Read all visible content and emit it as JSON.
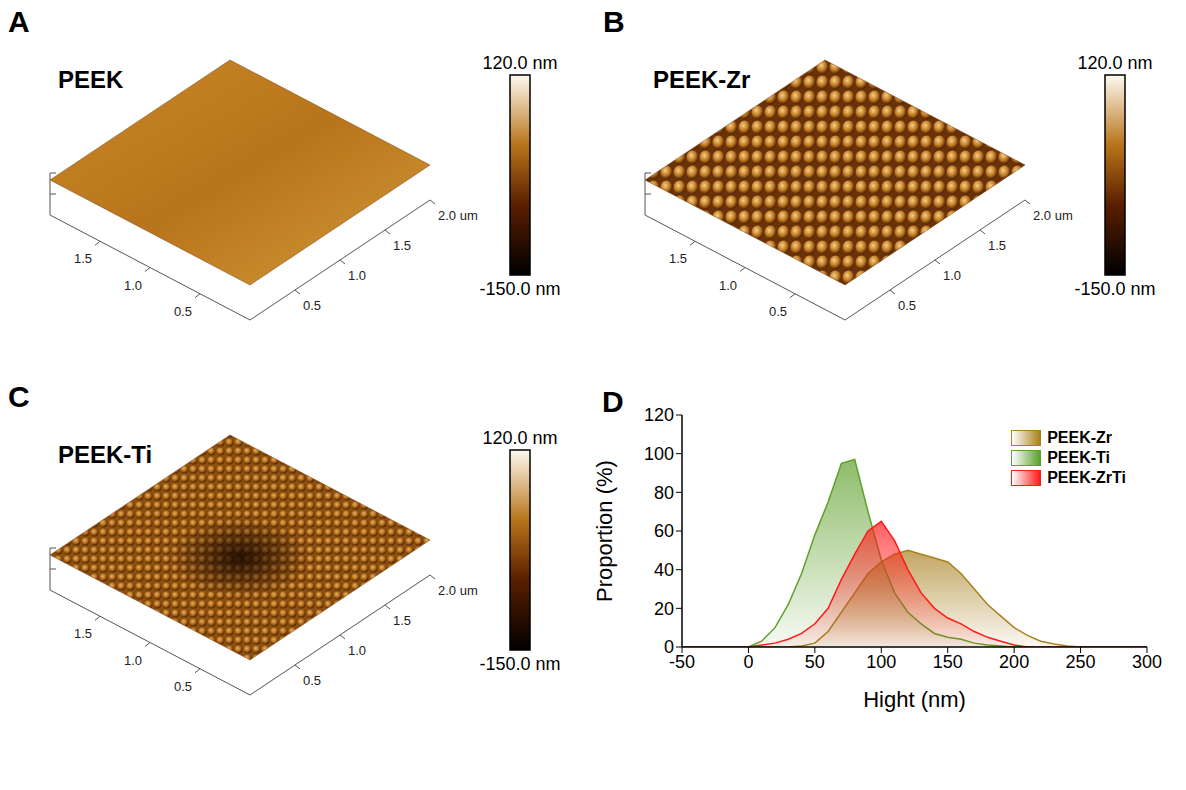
{
  "chart_data": [
    {
      "type": "surface",
      "panel": "A",
      "title": "PEEK",
      "xlim": [
        0,
        2
      ],
      "ylim": [
        0,
        2
      ],
      "xticks": [
        {
          "value": 0.5,
          "label": "0.5"
        },
        {
          "value": 1.0,
          "label": "1.0"
        },
        {
          "value": 1.5,
          "label": "1.5"
        },
        {
          "value": 2.0,
          "label": "2.0 um"
        }
      ],
      "yticks": [
        {
          "value": 0.5,
          "label": "0.5"
        },
        {
          "value": 1.0,
          "label": "1.0"
        },
        {
          "value": 1.5,
          "label": "1.5"
        }
      ],
      "colorbar_range": [
        -150,
        120
      ],
      "colorbar_ticks": [
        {
          "value": 120,
          "label": "120.0 nm"
        },
        {
          "value": -150,
          "label": "-150.0 nm"
        }
      ]
    },
    {
      "type": "surface",
      "panel": "B",
      "title": "PEEK-Zr",
      "xlim": [
        0,
        2
      ],
      "ylim": [
        0,
        2
      ],
      "xticks": [
        {
          "value": 0.5,
          "label": "0.5"
        },
        {
          "value": 1.0,
          "label": "1.0"
        },
        {
          "value": 1.5,
          "label": "1.5"
        },
        {
          "value": 2.0,
          "label": "2.0 um"
        }
      ],
      "yticks": [
        {
          "value": 0.5,
          "label": "0.5"
        },
        {
          "value": 1.0,
          "label": "1.0"
        },
        {
          "value": 1.5,
          "label": "1.5"
        }
      ],
      "colorbar_range": [
        -150,
        120
      ],
      "colorbar_ticks": [
        {
          "value": 120,
          "label": "120.0 nm"
        },
        {
          "value": -150,
          "label": "-150.0 nm"
        }
      ]
    },
    {
      "type": "surface",
      "panel": "C",
      "title": "PEEK-Ti",
      "xlim": [
        0,
        2
      ],
      "ylim": [
        0,
        2
      ],
      "xticks": [
        {
          "value": 0.5,
          "label": "0.5"
        },
        {
          "value": 1.0,
          "label": "1.0"
        },
        {
          "value": 1.5,
          "label": "1.5"
        },
        {
          "value": 2.0,
          "label": "2.0 um"
        }
      ],
      "yticks": [
        {
          "value": 0.5,
          "label": "0.5"
        },
        {
          "value": 1.0,
          "label": "1.0"
        },
        {
          "value": 1.5,
          "label": "1.5"
        }
      ],
      "colorbar_range": [
        -150,
        120
      ],
      "colorbar_ticks": [
        {
          "value": 120,
          "label": "120.0 nm"
        },
        {
          "value": -150,
          "label": "-150.0 nm"
        }
      ]
    },
    {
      "type": "area",
      "panel": "D",
      "x_label": "Hight (nm)",
      "y_label": "Proportion (%)",
      "x": [
        -50,
        -40,
        -30,
        -20,
        -10,
        0,
        10,
        20,
        30,
        40,
        50,
        60,
        70,
        80,
        90,
        100,
        110,
        120,
        130,
        140,
        150,
        160,
        170,
        180,
        190,
        200,
        210,
        220,
        230,
        240,
        250,
        260,
        270,
        280,
        290,
        300
      ],
      "series": [
        {
          "name": "PEEK-Zr",
          "color": "#a8801e",
          "values": [
            0,
            0,
            0,
            0,
            0,
            0,
            0,
            0,
            0,
            0.5,
            2,
            8,
            18,
            28,
            38,
            44,
            48,
            50,
            48,
            46,
            44,
            38,
            30,
            22,
            16,
            10,
            6,
            3,
            1.5,
            0.5,
            0,
            0,
            0,
            0,
            0,
            0
          ]
        },
        {
          "name": "PEEK-Ti",
          "color": "#5ea02a",
          "values": [
            0,
            0,
            0,
            0,
            0,
            0,
            3,
            10,
            22,
            38,
            58,
            75,
            95,
            97,
            70,
            45,
            28,
            18,
            12,
            7,
            5,
            4,
            2,
            1,
            0.5,
            0,
            0,
            0,
            0,
            0,
            0,
            0,
            0,
            0,
            0,
            0
          ]
        },
        {
          "name": "PEEK-ZrTi",
          "color": "#ff1a1a",
          "values": [
            0,
            0,
            0,
            0,
            0,
            0,
            1,
            2,
            4,
            7,
            12,
            20,
            35,
            48,
            60,
            65,
            55,
            40,
            28,
            20,
            15,
            12,
            8,
            5,
            3,
            1,
            0,
            0,
            0,
            0,
            0,
            0,
            0,
            0,
            0,
            0
          ]
        }
      ],
      "xlim": [
        -50,
        300
      ],
      "xticks": [
        -50,
        0,
        50,
        100,
        150,
        200,
        250,
        300
      ],
      "ylim": [
        0,
        120
      ],
      "yticks": [
        0,
        20,
        40,
        60,
        80,
        100,
        120
      ],
      "legend": "upper right"
    }
  ]
}
